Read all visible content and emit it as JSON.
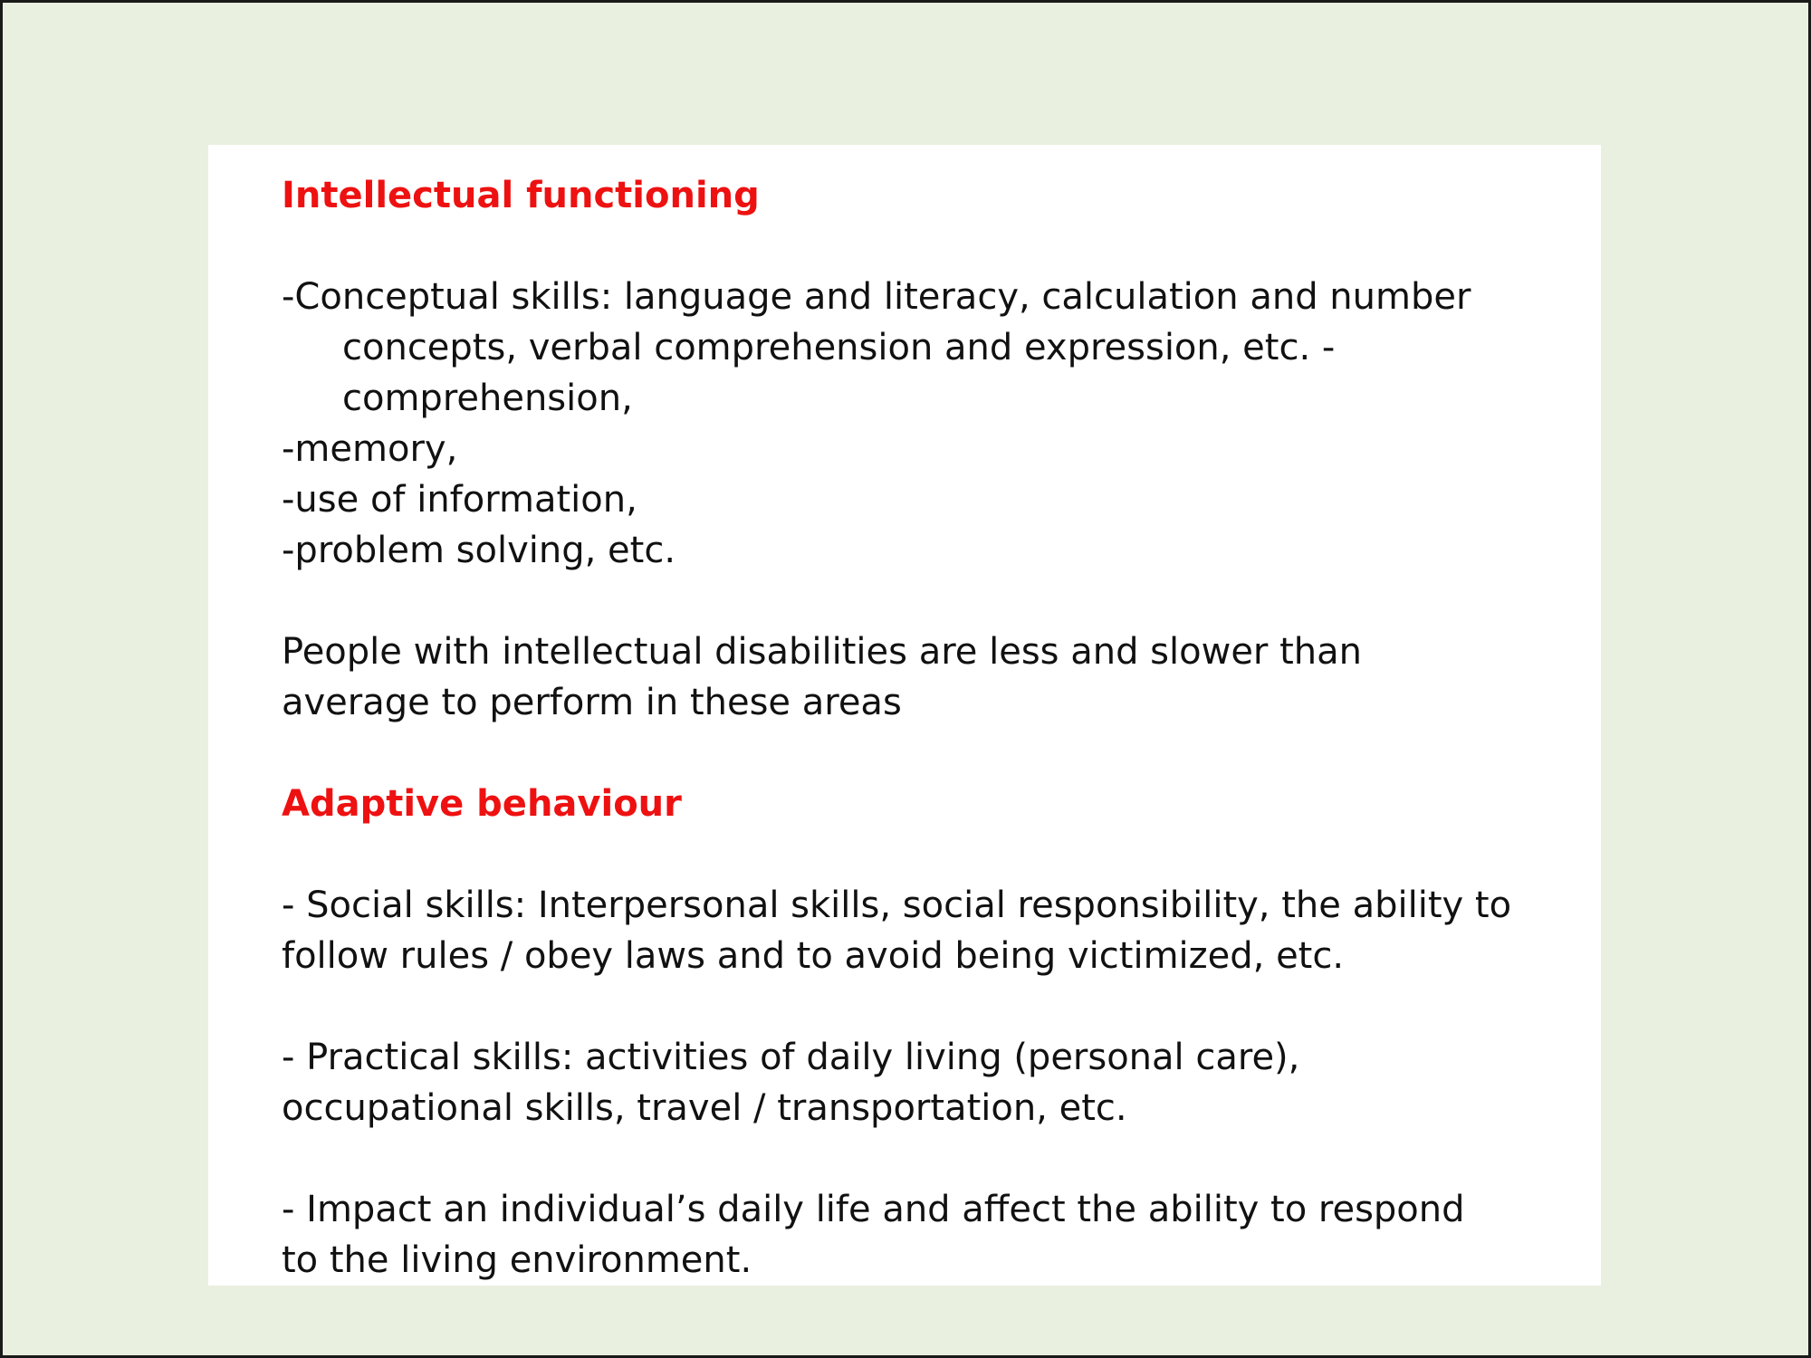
{
  "slide": {
    "section1": {
      "heading": "Intellectual functioning",
      "items": [
        "-Conceptual skills: language and literacy, calculation and number",
        "concepts, verbal comprehension and expression, etc. -",
        "comprehension,",
        "-memory,",
        "-use of information,",
        "-problem solving, etc."
      ],
      "summary_lines": [
        "People with intellectual disabilities are less and slower than",
        "average to perform in these areas"
      ]
    },
    "section2": {
      "heading": "Adaptive behaviour",
      "social_lines": [
        "- Social skills: Interpersonal skills, social responsibility, the ability to",
        "follow rules / obey laws and to avoid being victimized, etc."
      ],
      "practical_lines": [
        "- Practical skills: activities of daily living (personal care),",
        "occupational skills, travel / transportation, etc."
      ],
      "impact_lines": [
        "- Impact an individual’s daily life and affect the ability to respond",
        "to the living environment."
      ]
    },
    "colors": {
      "heading": "#ee1111",
      "text": "#111111",
      "background": "#e9f0e0",
      "panel": "#ffffff"
    }
  }
}
